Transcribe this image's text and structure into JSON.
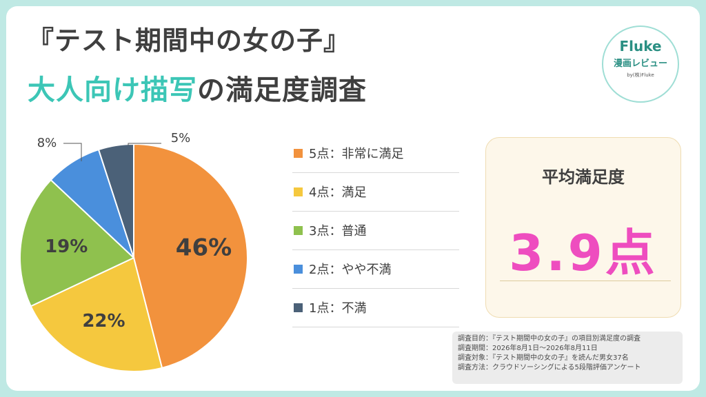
{
  "title": {
    "line1": "『テスト期間中の女の子』",
    "line2_highlight": "大人向け描写",
    "line2_rest": "の満足度調査"
  },
  "logo": {
    "name": "Fluke",
    "subtitle": "漫画レビュー",
    "byline": "by(株)Fluke"
  },
  "chart_data": {
    "type": "pie",
    "categories": [
      "5点：非常に満足",
      "4点：満足",
      "3点：普通",
      "2点：やや不満",
      "1点：不満"
    ],
    "values": [
      46,
      22,
      19,
      8,
      5
    ],
    "data_labels": [
      "46%",
      "22%",
      "19%",
      "8%",
      "5%"
    ],
    "colors": [
      "#f2923d",
      "#f5c83e",
      "#8fc14e",
      "#4a8fdc",
      "#4b6178"
    ],
    "legend_placement": "right"
  },
  "legend": [
    {
      "label": "5点：非常に満足",
      "color": "#f2923d"
    },
    {
      "label": "4点：満足",
      "color": "#f5c83e"
    },
    {
      "label": "3点：普通",
      "color": "#8fc14e"
    },
    {
      "label": "2点：やや不満",
      "color": "#4a8fdc"
    },
    {
      "label": "1点：不満",
      "color": "#4b6178"
    }
  ],
  "average": {
    "label": "平均満足度",
    "value": "3.9点"
  },
  "survey": {
    "purpose": "調査目的：『テスト期間中の女の子』の項目別満足度の調査",
    "period": "調査期間：2026年8月1日～2026年8月11日",
    "target": "調査対象：『テスト期間中の女の子』を読んだ男女37名",
    "method": "調査方法：クラウドソーシングによる5段階評価アンケート"
  }
}
